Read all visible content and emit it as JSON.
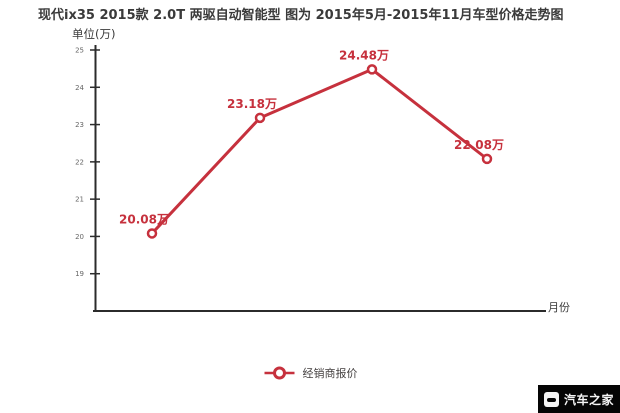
{
  "title": "现代ix35 2015款 2.0T 两驱自动智能型 图为 2015年5月-2015年11月车型价格走势图",
  "y_axis_unit": "单位(万)",
  "x_axis_label": "月份",
  "legend": {
    "label": "经销商报价"
  },
  "watermark": {
    "brand": "汽车之家"
  },
  "colors": {
    "line": "#c6313d",
    "point_label": "#c6313d",
    "marker_fill": "#ffffff",
    "axis": "#2b2b2b",
    "tick_label": "#666666",
    "title_text": "#3a3a3a",
    "watermark_bg": "#050505",
    "watermark_text": "#f5f5f5"
  },
  "chart_data": {
    "type": "line",
    "title": "现代ix35 2015款 2.0T 两驱自动智能型 图为 2015年5月-2015年11月车型价格走势图",
    "xlabel": "月份",
    "ylabel": "单位(万)",
    "x": [
      1,
      2,
      3,
      4
    ],
    "x_tick_labels": [],
    "series": [
      {
        "name": "经销商报价",
        "values": [
          20.08,
          23.18,
          24.48,
          22.08
        ],
        "point_labels": [
          "20.08万",
          "23.18万",
          "24.48万",
          "22.08万"
        ]
      }
    ],
    "ylim": [
      18,
      25
    ],
    "yticks": [
      25,
      24,
      23,
      22,
      21,
      20,
      19
    ],
    "grid": false,
    "legend_position": "bottom"
  }
}
